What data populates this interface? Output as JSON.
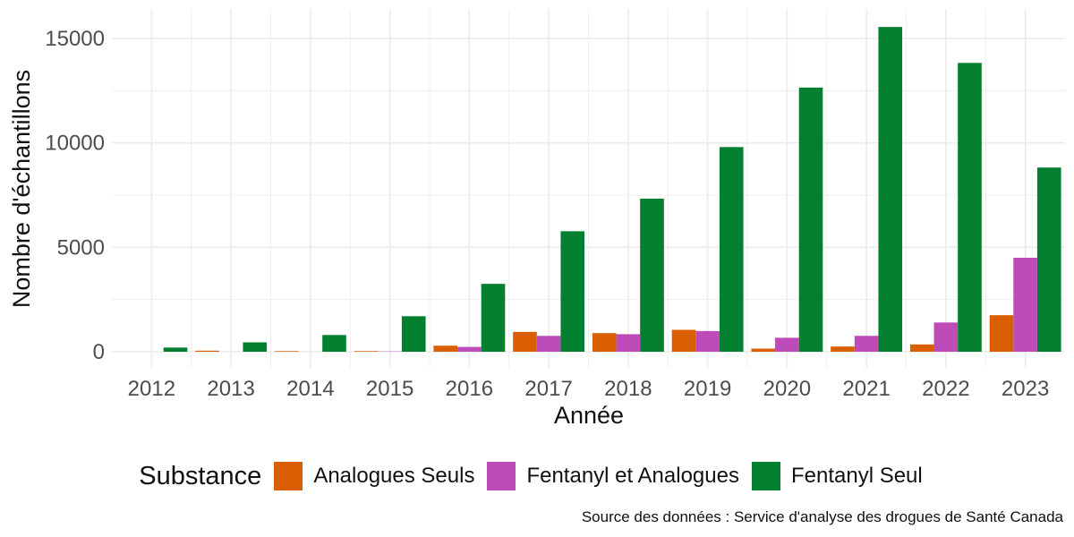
{
  "chart_data": {
    "type": "bar",
    "xlabel": "Année",
    "ylabel": "Nombre d'échantillons",
    "ylim": [
      -500,
      16000
    ],
    "yticks": [
      0,
      5000,
      10000,
      15000
    ],
    "grid": true,
    "legend_position": "bottom",
    "legend_title": "Substance",
    "categories": [
      "2012",
      "2013",
      "2014",
      "2015",
      "2016",
      "2017",
      "2018",
      "2019",
      "2020",
      "2021",
      "2022",
      "2023"
    ],
    "series": [
      {
        "name": "Analogues Seuls",
        "color": "#D95F02",
        "values": [
          0,
          50,
          30,
          30,
          290,
          950,
          890,
          1050,
          150,
          250,
          350,
          1750
        ]
      },
      {
        "name": "Fentanyl et Analogues",
        "color": "#BD4BB8",
        "values": [
          0,
          0,
          0,
          15,
          230,
          760,
          840,
          990,
          670,
          760,
          1400,
          4500
        ]
      },
      {
        "name": "Fentanyl Seul",
        "color": "#03802F",
        "values": [
          200,
          450,
          800,
          1700,
          3250,
          5770,
          7330,
          9800,
          12650,
          15550,
          13830,
          8820
        ]
      }
    ]
  },
  "source_note": "Source des données : Service d'analyse des drogues de Santé Canada"
}
